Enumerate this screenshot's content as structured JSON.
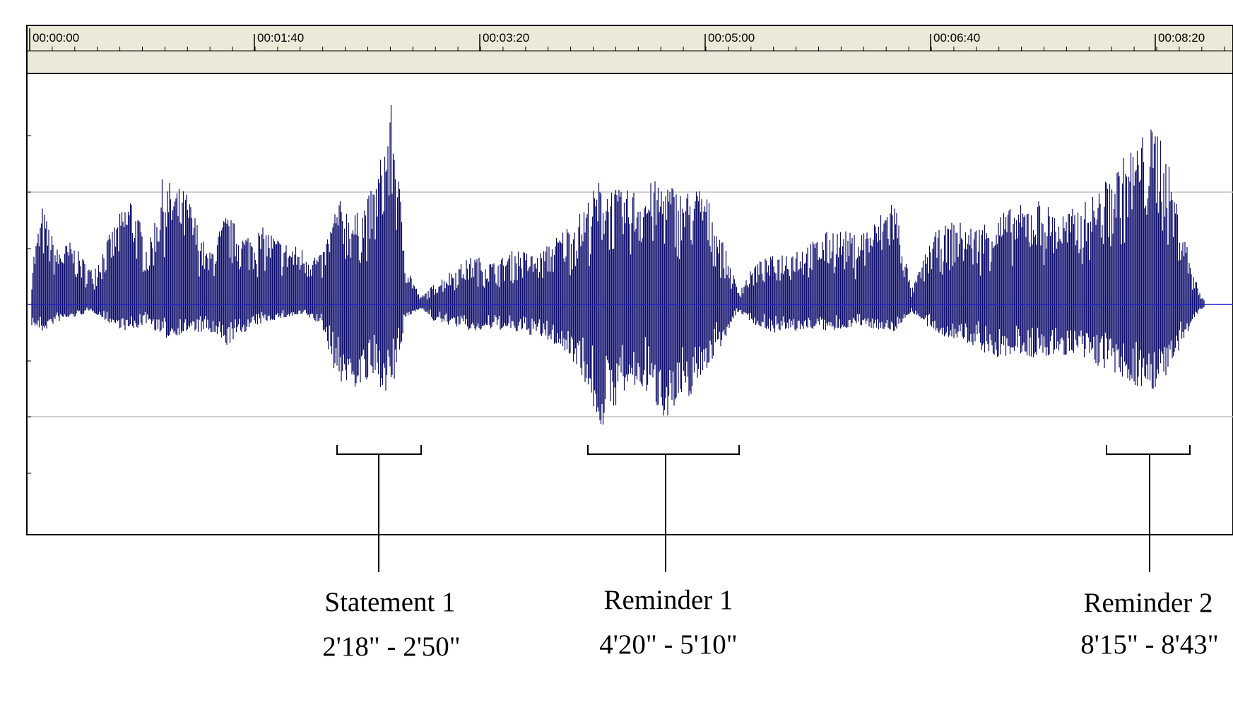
{
  "timeline": {
    "ticks": [
      "00:00:00",
      "00:01:40",
      "00:03:20",
      "00:05:00",
      "00:06:40",
      "00:08:20"
    ]
  },
  "waveform": {
    "color": "#0b0b6b",
    "baseline_color": "#1f1fd0",
    "ruler_color": "#ece9d8",
    "grid_color": "#c0c0c0"
  },
  "segments": [
    {
      "label": "Statement 1",
      "range": "2'18\" - 2'50\""
    },
    {
      "label": "Reminder 1",
      "range": "4'20\" - 5'10\""
    },
    {
      "label": "Reminder 2",
      "range": "8'15\" - 8'43\""
    }
  ]
}
